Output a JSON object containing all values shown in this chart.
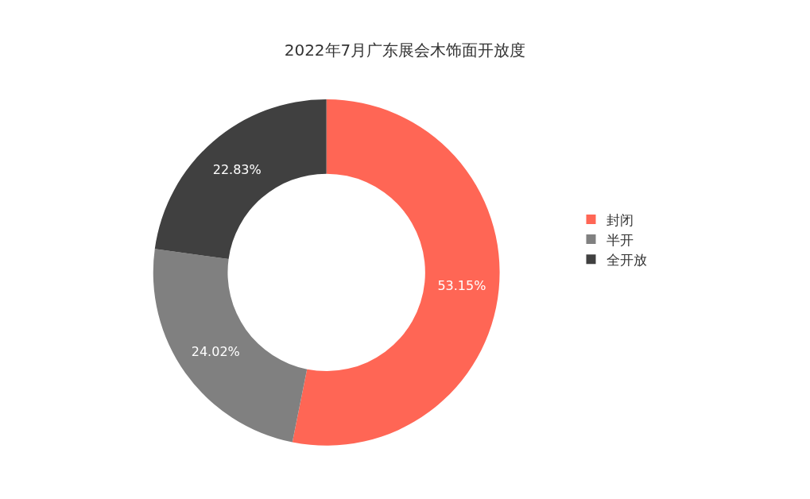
{
  "chart_data": {
    "type": "donut",
    "title": "2022年7月广东展会木饰面开放度",
    "categories": [
      "封闭",
      "半开",
      "全开放"
    ],
    "values": [
      53.15,
      24.02,
      22.83
    ],
    "value_labels": [
      "53.15%",
      "24.02%",
      "22.83%"
    ],
    "colors": [
      "#ff6655",
      "#808080",
      "#404040"
    ],
    "legend": "right"
  }
}
